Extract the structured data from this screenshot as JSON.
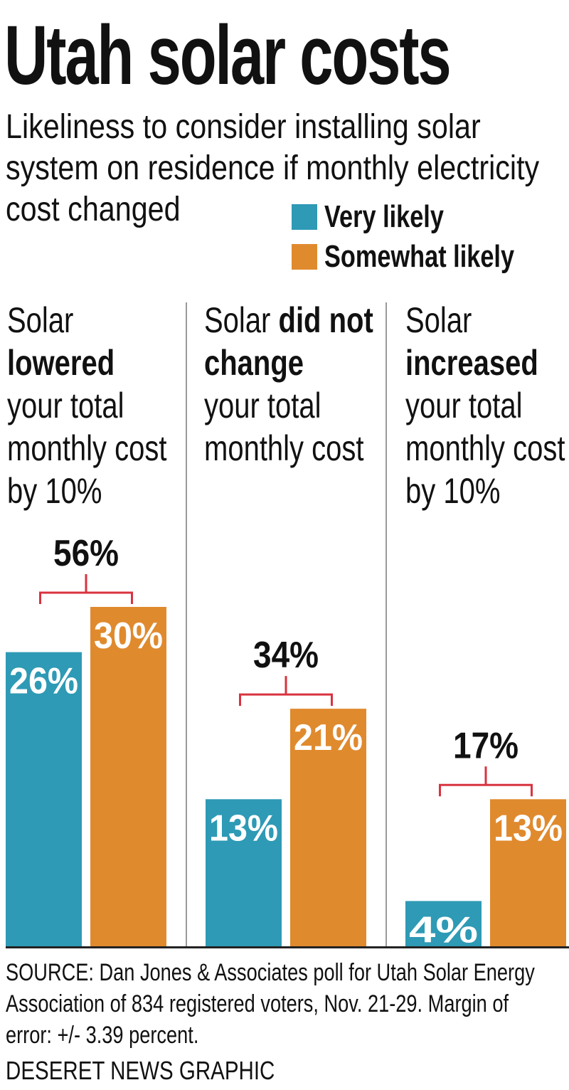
{
  "title": "Utah solar costs",
  "subtitle": "Likeliness to consider installing solar system on residence if monthly electricity cost changed",
  "legend": [
    {
      "label": "Very likely",
      "color": "#2e9ab5"
    },
    {
      "label": "Somewhat likely",
      "color": "#e08a2e"
    }
  ],
  "groups": [
    {
      "pre": "Solar",
      "bold": "lowered",
      "post": "your total monthly cost by 10%"
    },
    {
      "pre": "Solar",
      "bold": "did not change",
      "post": "your total monthly cost"
    },
    {
      "pre": "Solar",
      "bold": "increased",
      "post": "your total monthly cost by 10%"
    }
  ],
  "chart_data": {
    "type": "bar",
    "categories": [
      "Solar lowered your total monthly cost by 10%",
      "Solar did not change your total monthly cost",
      "Solar increased your total monthly cost by 10%"
    ],
    "series": [
      {
        "name": "Very likely",
        "values": [
          26,
          13,
          4
        ],
        "labels": [
          "26%",
          "13%",
          "4%"
        ]
      },
      {
        "name": "Somewhat likely",
        "values": [
          30,
          21,
          13
        ],
        "labels": [
          "30%",
          "21%",
          "13%"
        ]
      }
    ],
    "totals": [
      56,
      34,
      17
    ],
    "total_labels": [
      "56%",
      "34%",
      "17%"
    ],
    "bracket_color": "#d9333f"
  },
  "source": "SOURCE: Dan Jones & Associates poll for Utah Solar Energy Association of 834 registered voters, Nov. 21-29. Margin of error: +/- 3.39 percent.",
  "credit": "DESERET NEWS GRAPHIC"
}
